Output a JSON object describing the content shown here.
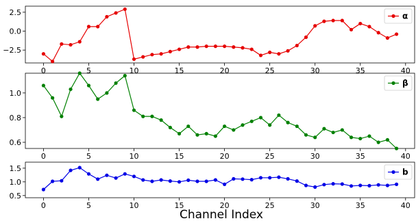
{
  "chart_data": {
    "type": "line",
    "xlabel": "Channel Index",
    "xlim": [
      -2,
      41
    ],
    "xticks": [
      0,
      5,
      10,
      15,
      20,
      25,
      30,
      35,
      40
    ],
    "x": [
      0,
      1,
      2,
      3,
      4,
      5,
      6,
      7,
      8,
      9,
      10,
      11,
      12,
      13,
      14,
      15,
      16,
      17,
      18,
      19,
      20,
      21,
      22,
      23,
      24,
      25,
      26,
      27,
      28,
      29,
      30,
      31,
      32,
      33,
      34,
      35,
      36,
      37,
      38,
      39
    ],
    "legend_position": "top-right",
    "grid": false,
    "panels": [
      {
        "series": [
          {
            "name": "α",
            "color": "#e60000",
            "values": [
              -3.0,
              -4.0,
              -1.7,
              -1.8,
              -1.4,
              0.6,
              0.6,
              1.9,
              2.4,
              2.9,
              -3.7,
              -3.4,
              -3.1,
              -3.0,
              -2.7,
              -2.4,
              -2.1,
              -2.1,
              -2.0,
              -2.0,
              -2.0,
              -2.1,
              -2.2,
              -2.4,
              -3.2,
              -2.8,
              -3.0,
              -2.6,
              -1.9,
              -0.8,
              0.7,
              1.3,
              1.4,
              1.4,
              0.2,
              1.0,
              0.6,
              -0.2,
              -0.9,
              -0.4
            ]
          }
        ],
        "ylim": [
          -4.2,
          3.3
        ],
        "yticks": [
          -2.5,
          0.0,
          2.5
        ],
        "ytick_labels": [
          "−2.5",
          "0.0",
          "2.5"
        ]
      },
      {
        "series": [
          {
            "name": "β",
            "color": "#008000",
            "values": [
              1.06,
              0.96,
              0.81,
              1.03,
              1.16,
              1.06,
              0.95,
              1.0,
              1.08,
              1.14,
              0.86,
              0.81,
              0.81,
              0.78,
              0.72,
              0.67,
              0.73,
              0.66,
              0.67,
              0.65,
              0.73,
              0.7,
              0.74,
              0.77,
              0.8,
              0.74,
              0.82,
              0.76,
              0.73,
              0.66,
              0.64,
              0.71,
              0.68,
              0.7,
              0.64,
              0.63,
              0.65,
              0.6,
              0.62,
              0.55
            ]
          }
        ],
        "ylim": [
          0.55,
          1.16
        ],
        "yticks": [
          0.6,
          0.8,
          1.0
        ],
        "ytick_labels": [
          "0.6",
          "0.8",
          "1.0"
        ]
      },
      {
        "series": [
          {
            "name": "b",
            "color": "#0000e6",
            "values": [
              0.72,
              1.02,
              1.04,
              1.42,
              1.52,
              1.29,
              1.1,
              1.24,
              1.14,
              1.29,
              1.2,
              1.07,
              1.02,
              1.07,
              1.03,
              1.0,
              1.06,
              1.02,
              1.02,
              1.07,
              0.91,
              1.11,
              1.1,
              1.08,
              1.15,
              1.15,
              1.17,
              1.11,
              1.03,
              0.87,
              0.81,
              0.9,
              0.93,
              0.92,
              0.85,
              0.87,
              0.86,
              0.89,
              0.87,
              0.91
            ]
          }
        ],
        "ylim": [
          0.42,
          1.72
        ],
        "yticks": [
          0.5,
          1.0,
          1.5
        ],
        "ytick_labels": [
          "0.5",
          "1.0",
          "1.5"
        ]
      }
    ]
  }
}
